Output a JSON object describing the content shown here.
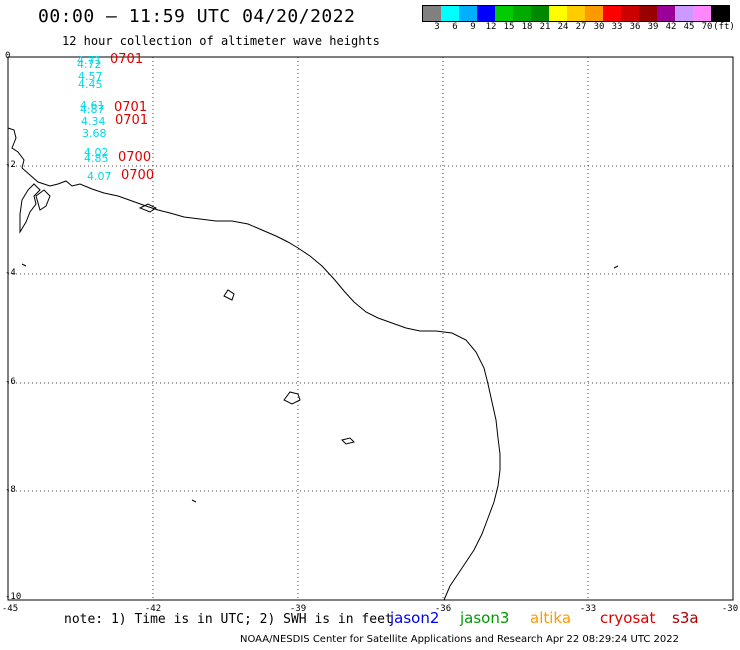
{
  "header": {
    "title": "00:00 – 11:59 UTC 04/20/2022",
    "subtitle": "12 hour collection of altimeter wave heights"
  },
  "colorbar": {
    "colors": [
      "#808080",
      "#00ffff",
      "#00b0ff",
      "#0000ff",
      "#00cc00",
      "#00aa00",
      "#008800",
      "#ffff00",
      "#ffcc00",
      "#ff9900",
      "#ff0000",
      "#cc0000",
      "#990000",
      "#990099",
      "#cc99ff",
      "#ff88ff",
      "#000000"
    ],
    "labels": [
      "3",
      "6",
      "9",
      "12",
      "15",
      "18",
      "21",
      "24",
      "27",
      "30",
      "33",
      "36",
      "39",
      "42",
      "45",
      "70"
    ],
    "unit": "(ft)"
  },
  "axes": {
    "lat_labels": [
      "0",
      "-2",
      "-4",
      "-6",
      "-8",
      "-10"
    ],
    "lon_labels": [
      "-45",
      "-42",
      "-39",
      "-36",
      "-33",
      "-30"
    ]
  },
  "measurements": [
    {
      "swh": "4.71",
      "time": "0701"
    },
    {
      "swh": "4.72",
      "time": ""
    },
    {
      "swh": "4.57",
      "time": ""
    },
    {
      "swh": "4.45",
      "time": ""
    },
    {
      "swh": "4.61",
      "time": "0701"
    },
    {
      "swh": "4.87",
      "time": ""
    },
    {
      "swh": "4.34",
      "time": "0701"
    },
    {
      "swh": "3.68",
      "time": ""
    },
    {
      "swh": "4.02",
      "time": ""
    },
    {
      "swh": "4.85",
      "time": "0700"
    },
    {
      "swh": "4.07",
      "time": "0700"
    }
  ],
  "footer": {
    "note": "note: 1) Time is in UTC; 2) SWH is in feet",
    "satellites": [
      {
        "name": "jason2",
        "color": "#0000ee"
      },
      {
        "name": "jason3",
        "color": "#009900"
      },
      {
        "name": "altika",
        "color": "#ff9900"
      },
      {
        "name": "cryosat",
        "color": "#dd0000"
      },
      {
        "name": "s3a",
        "color": "#aa0000"
      }
    ],
    "credit": "NOAA/NESDIS Center for Satellite Applications and Research   Apr 22 08:29:24 UTC 2022"
  }
}
